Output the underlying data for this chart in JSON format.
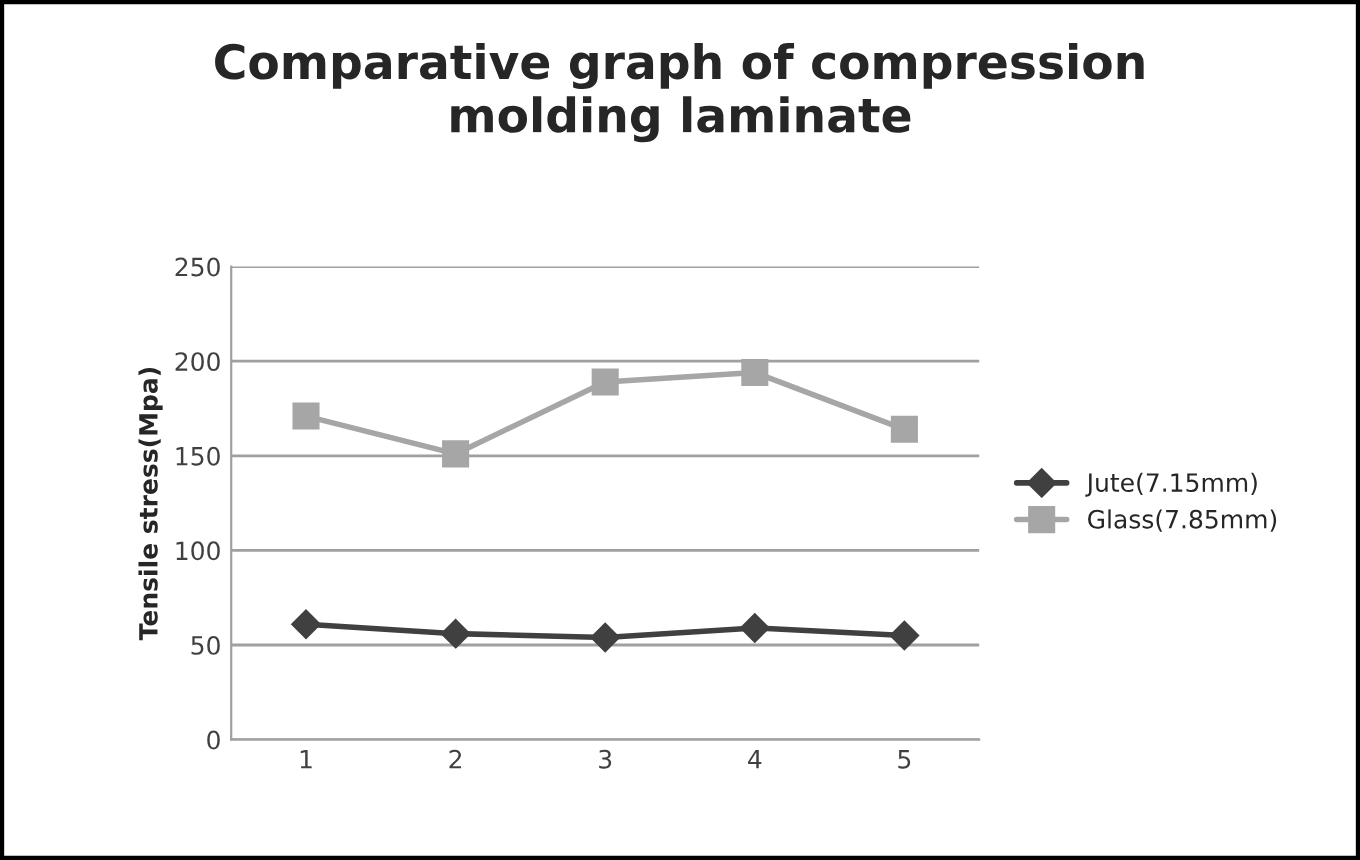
{
  "chart_data": {
    "type": "line",
    "title": "Comparative graph of compression\nmolding laminate",
    "ylabel": "Tensile stress(Mpa)",
    "categories": [
      "1",
      "2",
      "3",
      "4",
      "5"
    ],
    "series": [
      {
        "name": "Jute(7.15mm)",
        "color": "#404040",
        "marker": "diamond",
        "values": [
          61,
          56,
          54,
          59,
          55
        ]
      },
      {
        "name": "Glass(7.85mm)",
        "color": "#a6a6a6",
        "marker": "square",
        "values": [
          171,
          151,
          189,
          194,
          164
        ]
      }
    ],
    "ylim": [
      0,
      250
    ],
    "yticks": [
      0,
      50,
      100,
      150,
      200,
      250
    ],
    "grid": "y",
    "legend": "right",
    "line_style": "solid"
  }
}
